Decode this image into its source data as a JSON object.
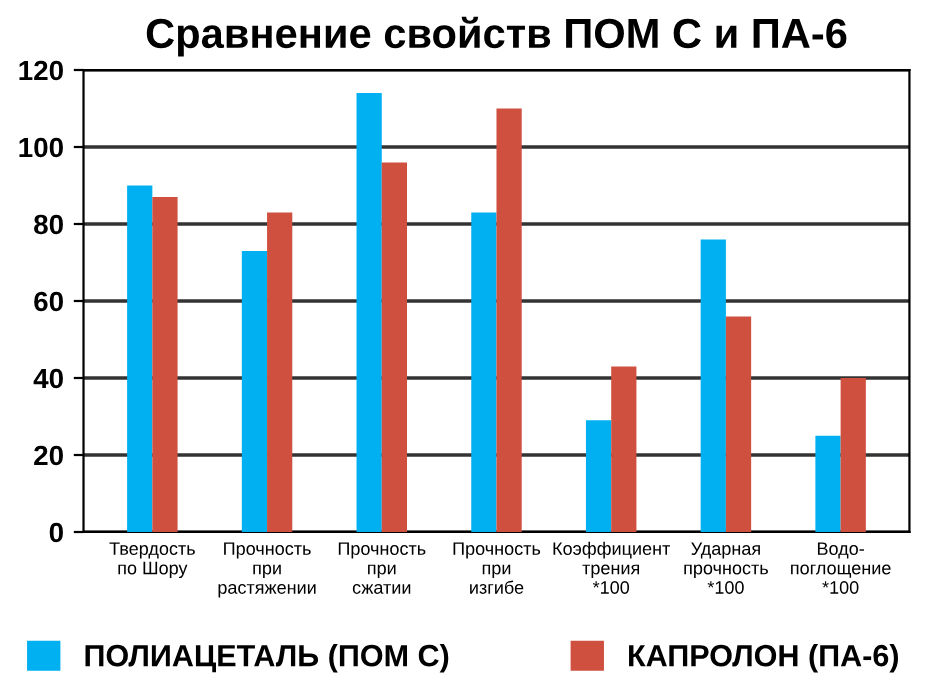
{
  "chart_data": {
    "type": "bar",
    "title": "Сравнение свойств ПОМ С и ПА-6",
    "categories": [
      "Твердость\nпо Шору",
      "Прочность\nпри\nрастяжении",
      "Прочность\nпри\nсжатии",
      "Прочность\nпри\nизгибе",
      "Коэффициент\nтрения\n*100",
      "Ударная\nпрочность\n*100",
      "Водо-\nпоглощение\n*100"
    ],
    "series": [
      {
        "name": "ПОЛИАЦЕТАЛЬ (ПОМ С)",
        "color": "#00b0f0",
        "values": [
          90,
          73,
          114,
          83,
          29,
          76,
          25
        ]
      },
      {
        "name": "КАПРОЛОН (ПА-6)",
        "color": "#d05040",
        "values": [
          87,
          83,
          96,
          110,
          43,
          56,
          40
        ]
      }
    ],
    "ylim": [
      0,
      120
    ],
    "yticks": [
      0,
      20,
      40,
      60,
      80,
      100,
      120
    ],
    "grid": "y",
    "legend": "bottom"
  }
}
